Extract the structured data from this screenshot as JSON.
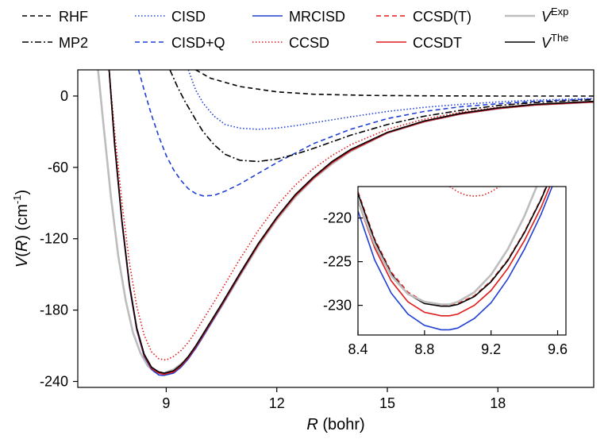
{
  "chart_data": [
    {
      "type": "line",
      "xlabel": "R (bohr)",
      "ylabel": "V(R) (cm-1)",
      "xlabel_parts": {
        "var": "R",
        "unit": " (bohr)"
      },
      "ylabel_parts": {
        "var": "V",
        "arg": "R",
        "unit": "(cm",
        "exp": "-1",
        "close": ")"
      },
      "xlim": [
        6.6,
        20.6
      ],
      "ylim": [
        -245,
        22
      ],
      "xticks": [
        9,
        12,
        15,
        18
      ],
      "yticks": [
        0,
        -60,
        -120,
        -180,
        -240
      ],
      "legend_position": "top (above plot, 5 columns x 2 rows)",
      "grid": false,
      "series": [
        {
          "name": "RHF",
          "key": "rhf",
          "color": "#000000",
          "style": "dashed",
          "x": [
            9.8,
            10.2,
            11.0,
            12.0,
            13.0,
            14.5,
            16.0,
            18.0,
            20.6
          ],
          "y": [
            22,
            15,
            8,
            3.5,
            1.5,
            0.5,
            0.2,
            0.0,
            0.0
          ]
        },
        {
          "name": "CISD",
          "key": "cisd",
          "color": "#1f3fd4",
          "style": "dotted",
          "x": [
            9.6,
            9.8,
            10.0,
            10.3,
            10.6,
            11.0,
            11.5,
            12.0,
            12.5,
            13.0,
            14.0,
            15.0,
            16.0,
            17.0,
            18.0,
            19.0,
            20.6
          ],
          "y": [
            22,
            5,
            -6,
            -17,
            -24,
            -27,
            -28,
            -27,
            -25,
            -22.5,
            -17.5,
            -13,
            -9.5,
            -7,
            -5,
            -3.5,
            -2
          ]
        },
        {
          "name": "CISD+Q",
          "key": "cisdq",
          "color": "#1f3fd4",
          "style": "dashed",
          "x": [
            8.25,
            8.4,
            8.6,
            8.8,
            9.0,
            9.2,
            9.4,
            9.6,
            9.8,
            10.0,
            10.3,
            10.6,
            11.0,
            11.5,
            12.0,
            12.5,
            13.0,
            14.0,
            15.0,
            16.0,
            17.0,
            18.0,
            19.0,
            20.6
          ],
          "y": [
            22,
            5,
            -16,
            -34,
            -50,
            -62,
            -71,
            -78,
            -82,
            -84,
            -83.5,
            -80,
            -74,
            -65,
            -56,
            -48,
            -40,
            -28,
            -19,
            -13,
            -9,
            -6.5,
            -4.5,
            -2.5
          ]
        },
        {
          "name": "MP2",
          "key": "mp2",
          "color": "#000000",
          "style": "dashdot",
          "x": [
            9.1,
            9.3,
            9.5,
            9.8,
            10.0,
            10.3,
            10.6,
            11.0,
            11.5,
            12.0,
            12.5,
            13.0,
            14.0,
            15.0,
            16.0,
            17.0,
            18.0,
            19.0,
            20.6
          ],
          "y": [
            22,
            8,
            -4,
            -20,
            -30,
            -41,
            -49,
            -54,
            -55,
            -53,
            -49,
            -44,
            -33,
            -24,
            -17,
            -12,
            -8,
            -5.5,
            -3
          ]
        },
        {
          "name": "CCSD",
          "key": "ccsd",
          "color": "#e01a1a",
          "style": "dotted",
          "x": [
            7.45,
            7.6,
            7.8,
            8.0,
            8.2,
            8.4,
            8.6,
            8.8,
            9.0,
            9.2,
            9.4,
            9.6,
            9.8,
            10.0,
            10.5,
            11.0,
            11.5,
            12.0,
            12.5,
            13.0,
            13.5,
            14.0,
            15.0,
            16.0,
            17.0,
            18.0,
            19.0,
            20.6
          ],
          "y": [
            22,
            -30,
            -90,
            -140,
            -177,
            -201,
            -215,
            -221,
            -222,
            -219,
            -214,
            -207,
            -198,
            -188,
            -163,
            -137,
            -113,
            -92,
            -75,
            -61,
            -50,
            -41,
            -28,
            -19.5,
            -13.5,
            -9.5,
            -7,
            -4.5
          ]
        },
        {
          "name": "CCSD(T)",
          "key": "ccsdt_paren",
          "color": "#e01a1a",
          "style": "dashed",
          "x": [
            7.45,
            7.6,
            7.8,
            8.0,
            8.2,
            8.4,
            8.6,
            8.8,
            8.95,
            9.2,
            9.4,
            9.6,
            9.8,
            10.0,
            10.5,
            11.0,
            11.5,
            12.0,
            12.5,
            13.0,
            13.5,
            14.0,
            15.0,
            16.0,
            17.0,
            18.0,
            19.0,
            20.6
          ],
          "y": [
            22,
            -40,
            -105,
            -158,
            -195,
            -217,
            -228,
            -232,
            -233,
            -231,
            -226,
            -219,
            -210,
            -200,
            -175,
            -149,
            -124,
            -102,
            -83,
            -68,
            -55,
            -45,
            -30.5,
            -21,
            -14.5,
            -10,
            -7,
            -4.5
          ]
        },
        {
          "name": "CCSDT",
          "key": "ccsdt",
          "color": "#e01a1a",
          "style": "solid",
          "x": [
            7.45,
            7.6,
            7.8,
            8.0,
            8.2,
            8.4,
            8.6,
            8.8,
            8.93,
            9.2,
            9.4,
            9.6,
            9.8,
            10.0,
            10.5,
            11.0,
            11.5,
            12.0,
            12.5,
            13.0,
            13.5,
            14.0,
            15.0,
            16.0,
            17.0,
            18.0,
            19.0,
            20.6
          ],
          "y": [
            22,
            -41,
            -106,
            -159,
            -196,
            -218,
            -229,
            -233,
            -234,
            -232,
            -227,
            -220,
            -211,
            -201,
            -176,
            -150,
            -125,
            -103,
            -84,
            -69,
            -56,
            -46,
            -31,
            -21.5,
            -15,
            -10.5,
            -7.5,
            -5
          ]
        },
        {
          "name": "MRCISD",
          "key": "mrcisd",
          "color": "#1f3fd4",
          "style": "solid",
          "x": [
            7.45,
            7.6,
            7.8,
            8.0,
            8.2,
            8.4,
            8.6,
            8.8,
            8.93,
            9.2,
            9.4,
            9.6,
            9.8,
            10.0,
            10.5,
            11.0,
            11.5,
            12.0,
            12.5,
            13.0,
            13.5,
            14.0,
            15.0,
            16.0,
            17.0,
            18.0,
            19.0,
            20.6
          ],
          "y": [
            22,
            -42,
            -107,
            -160,
            -197,
            -219,
            -230,
            -234.5,
            -235,
            -233,
            -228,
            -221,
            -212,
            -202,
            -176.5,
            -150.5,
            -125,
            -103,
            -84,
            -69,
            -56,
            -46,
            -31,
            -21.5,
            -15,
            -10.5,
            -7.5,
            -5
          ]
        },
        {
          "name": "VExp",
          "key": "vexp",
          "color": "#bdbdbd",
          "style": "solid",
          "x": [
            7.15,
            7.3,
            7.5,
            7.7,
            7.9,
            8.1,
            8.3,
            8.5,
            8.7,
            8.95,
            9.2,
            9.5,
            9.8,
            10.0,
            10.5,
            11.0,
            11.5,
            12.0,
            12.5,
            13.0,
            13.5,
            14.0,
            15.0,
            16.0,
            17.0,
            18.0,
            19.0,
            20.6
          ],
          "y": [
            22,
            -25,
            -85,
            -135,
            -172,
            -199,
            -216,
            -227,
            -232,
            -233,
            -230,
            -223,
            -212,
            -202,
            -177,
            -151,
            -126,
            -104,
            -85,
            -69.5,
            -57,
            -46.5,
            -31,
            -21.5,
            -15,
            -10.5,
            -7.5,
            -5
          ]
        },
        {
          "name": "VThe",
          "key": "vthe",
          "color": "#000000",
          "style": "solid",
          "x": [
            7.45,
            7.6,
            7.8,
            8.0,
            8.2,
            8.4,
            8.6,
            8.8,
            8.95,
            9.2,
            9.4,
            9.6,
            9.8,
            10.0,
            10.5,
            11.0,
            11.5,
            12.0,
            12.5,
            13.0,
            13.5,
            14.0,
            15.0,
            16.0,
            17.0,
            18.0,
            19.0,
            20.6
          ],
          "y": [
            22,
            -40,
            -105,
            -158,
            -195,
            -217,
            -228,
            -232,
            -233,
            -231,
            -226,
            -219,
            -210,
            -200,
            -175,
            -149,
            -124,
            -102,
            -83,
            -68,
            -55,
            -45,
            -30.5,
            -21,
            -14.5,
            -10,
            -7,
            -4.5
          ]
        }
      ]
    },
    {
      "type": "line",
      "title": "",
      "xlim": [
        8.4,
        9.65
      ],
      "ylim": [
        -233.4,
        -216.4
      ],
      "xticks": [
        8.4,
        8.8,
        9.2,
        9.6
      ],
      "xtick_labels": [
        "8.4",
        "8.8",
        "9.2",
        "9.6"
      ],
      "yticks": [
        -220,
        -225,
        -230
      ],
      "series": [
        {
          "key": "mrcisd",
          "color": "#1f3fd4",
          "style": "solid",
          "x": [
            8.4,
            8.5,
            8.6,
            8.7,
            8.8,
            8.9,
            8.95,
            9.0,
            9.1,
            9.2,
            9.3,
            9.4,
            9.5,
            9.65
          ],
          "y": [
            -219.2,
            -224.8,
            -228.6,
            -231.0,
            -232.3,
            -232.8,
            -232.8,
            -232.6,
            -231.5,
            -229.7,
            -227.0,
            -223.6,
            -219.6,
            -212.5
          ]
        },
        {
          "key": "ccsdt",
          "color": "#e01a1a",
          "style": "solid",
          "x": [
            8.4,
            8.5,
            8.6,
            8.7,
            8.8,
            8.9,
            8.95,
            9.0,
            9.1,
            9.2,
            9.3,
            9.4,
            9.5,
            9.65
          ],
          "y": [
            -218.1,
            -223.4,
            -227.2,
            -229.6,
            -230.8,
            -231.2,
            -231.2,
            -231.0,
            -230.0,
            -228.3,
            -225.8,
            -222.6,
            -218.8,
            -212.0
          ]
        },
        {
          "key": "ccsdt_paren",
          "color": "#e01a1a",
          "style": "dashed",
          "x": [
            8.4,
            8.5,
            8.6,
            8.7,
            8.8,
            8.9,
            8.95,
            9.0,
            9.1,
            9.2,
            9.3,
            9.4,
            9.5,
            9.65
          ],
          "y": [
            -217.0,
            -222.4,
            -226.2,
            -228.5,
            -229.6,
            -230.0,
            -230.0,
            -229.8,
            -228.9,
            -227.2,
            -224.8,
            -221.6,
            -217.8,
            -211.0
          ]
        },
        {
          "key": "vthe",
          "color": "#000000",
          "style": "solid",
          "x": [
            8.4,
            8.5,
            8.6,
            8.7,
            8.8,
            8.9,
            8.95,
            9.0,
            9.1,
            9.2,
            9.3,
            9.4,
            9.5,
            9.65
          ],
          "y": [
            -217.2,
            -222.6,
            -226.4,
            -228.7,
            -229.8,
            -230.1,
            -230.1,
            -229.9,
            -229.0,
            -227.3,
            -224.9,
            -221.7,
            -217.9,
            -211.2
          ]
        },
        {
          "key": "vexp",
          "color": "#bdbdbd",
          "style": "solid",
          "x": [
            8.4,
            8.5,
            8.6,
            8.7,
            8.8,
            8.9,
            8.95,
            9.0,
            9.1,
            9.2,
            9.3,
            9.4,
            9.5,
            9.65
          ],
          "y": [
            -218.0,
            -223.0,
            -226.6,
            -228.7,
            -229.6,
            -229.9,
            -229.9,
            -229.6,
            -228.5,
            -226.5,
            -223.6,
            -219.8,
            -215.2,
            -208.5
          ]
        },
        {
          "key": "ccsd",
          "color": "#e01a1a",
          "style": "dotted",
          "x": [
            8.95,
            9.0,
            9.05,
            9.1,
            9.15,
            9.2,
            9.25
          ],
          "y": [
            -216.4,
            -217.0,
            -217.4,
            -217.5,
            -217.4,
            -217.0,
            -216.4
          ]
        }
      ]
    }
  ]
}
